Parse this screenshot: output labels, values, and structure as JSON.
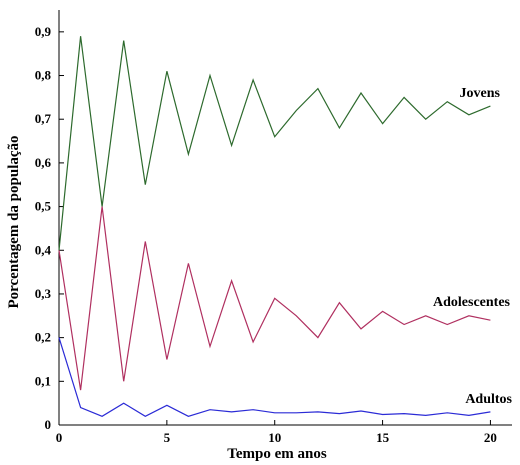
{
  "chart_data": {
    "type": "line",
    "xlabel": "Tempo  em  anos",
    "ylabel": "Porcentagem  da  população",
    "xlim": [
      0,
      21
    ],
    "ylim": [
      0,
      0.95
    ],
    "xticks": [
      0,
      5,
      10,
      15,
      20
    ],
    "xtick_labels": [
      "0",
      "5",
      "10",
      "15",
      "20"
    ],
    "yticks": [
      0,
      0.1,
      0.2,
      0.3,
      0.4,
      0.5,
      0.6,
      0.7,
      0.8,
      0.9
    ],
    "ytick_labels": [
      "0",
      "0,1",
      "0,2",
      "0,3",
      "0,4",
      "0,5",
      "0,6",
      "0,7",
      "0,8",
      "0,9"
    ],
    "grid": false,
    "legend": "none",
    "x": [
      0,
      1,
      2,
      3,
      4,
      5,
      6,
      7,
      8,
      9,
      10,
      11,
      12,
      13,
      14,
      15,
      16,
      17,
      18,
      19,
      20
    ],
    "series": [
      {
        "name": "Jovens",
        "color": "#2d6a2d",
        "values": [
          0.4,
          0.89,
          0.5,
          0.88,
          0.55,
          0.81,
          0.62,
          0.8,
          0.64,
          0.79,
          0.66,
          0.72,
          0.77,
          0.68,
          0.76,
          0.69,
          0.75,
          0.7,
          0.74,
          0.71,
          0.73
        ]
      },
      {
        "name": "Adolescentes",
        "color": "#b03060",
        "values": [
          0.4,
          0.08,
          0.5,
          0.1,
          0.42,
          0.15,
          0.37,
          0.18,
          0.33,
          0.19,
          0.29,
          0.25,
          0.2,
          0.28,
          0.22,
          0.26,
          0.23,
          0.25,
          0.23,
          0.25,
          0.24
        ]
      },
      {
        "name": "Adultos",
        "color": "#2b2bd6",
        "values": [
          0.2,
          0.04,
          0.02,
          0.05,
          0.02,
          0.045,
          0.02,
          0.035,
          0.03,
          0.035,
          0.028,
          0.028,
          0.03,
          0.026,
          0.032,
          0.024,
          0.026,
          0.022,
          0.028,
          0.022,
          0.03
        ]
      }
    ]
  }
}
